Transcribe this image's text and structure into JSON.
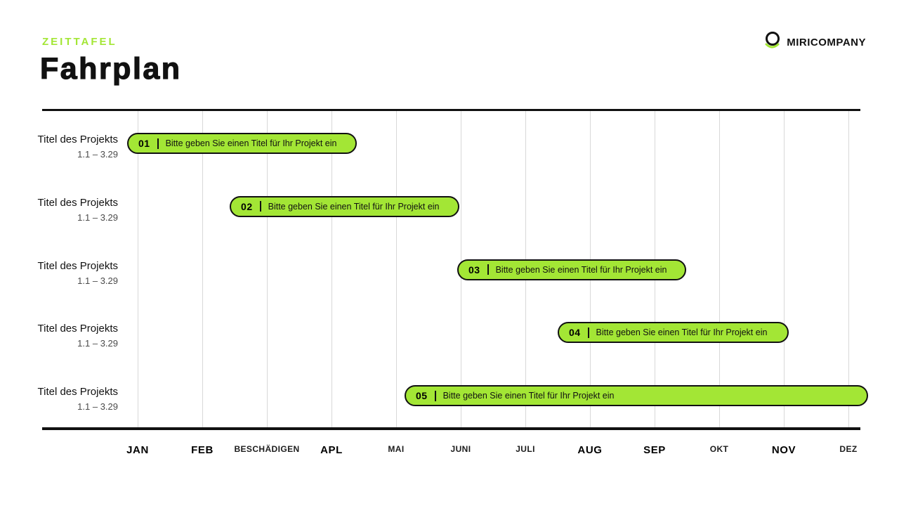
{
  "header": {
    "eyebrow": "ZEITTAFEL",
    "title": "Fahrplan",
    "brand": "MIRICOMPANY"
  },
  "colors": {
    "accent": "#A3E635",
    "ink": "#111111",
    "gridline": "#d8d8d8"
  },
  "chart_data": {
    "type": "bar",
    "variant": "gantt-timeline",
    "title": "Fahrplan",
    "months": [
      {
        "label": "JAN",
        "strong": true
      },
      {
        "label": "FEB",
        "strong": true
      },
      {
        "label": "BESCHÄDIGEN",
        "strong": false
      },
      {
        "label": "APL",
        "strong": true
      },
      {
        "label": "MAI",
        "strong": false
      },
      {
        "label": "JUNI",
        "strong": false
      },
      {
        "label": "JULI",
        "strong": false
      },
      {
        "label": "AUG",
        "strong": true
      },
      {
        "label": "SEP",
        "strong": true
      },
      {
        "label": "OKT",
        "strong": false
      },
      {
        "label": "NOV",
        "strong": true
      },
      {
        "label": "DEZ",
        "strong": false
      }
    ],
    "rows": [
      {
        "title": "Titel des Projekts",
        "dates": "1.1 – 3.29"
      },
      {
        "title": "Titel des Projekts",
        "dates": "1.1 – 3.29"
      },
      {
        "title": "Titel des Projekts",
        "dates": "1.1 – 3.29"
      },
      {
        "title": "Titel des Projekts",
        "dates": "1.1 – 3.29"
      },
      {
        "title": "Titel des Projekts",
        "dates": "1.1 – 3.29"
      }
    ],
    "bars": [
      {
        "num": "01",
        "label": "Bitte geben Sie einen Titel für Ihr Projekt ein",
        "row": 0,
        "left_pct": 14.14,
        "width_pct": 25.55
      },
      {
        "num": "02",
        "label": "Bitte geben Sie einen Titel für Ihr Projekt ein",
        "row": 1,
        "left_pct": 25.55,
        "width_pct": 25.55
      },
      {
        "num": "03",
        "label": "Bitte geben Sie einen Titel für Ihr Projekt ein",
        "row": 2,
        "left_pct": 50.86,
        "width_pct": 25.47
      },
      {
        "num": "04",
        "label": "Bitte geben Sie einen Titel für Ihr Projekt ein",
        "row": 3,
        "left_pct": 62.03,
        "width_pct": 25.7
      },
      {
        "num": "05",
        "label": "Bitte geben Sie einen Titel für Ihr Projekt ein",
        "row": 4,
        "left_pct": 45.0,
        "width_pct": 51.56
      }
    ]
  }
}
